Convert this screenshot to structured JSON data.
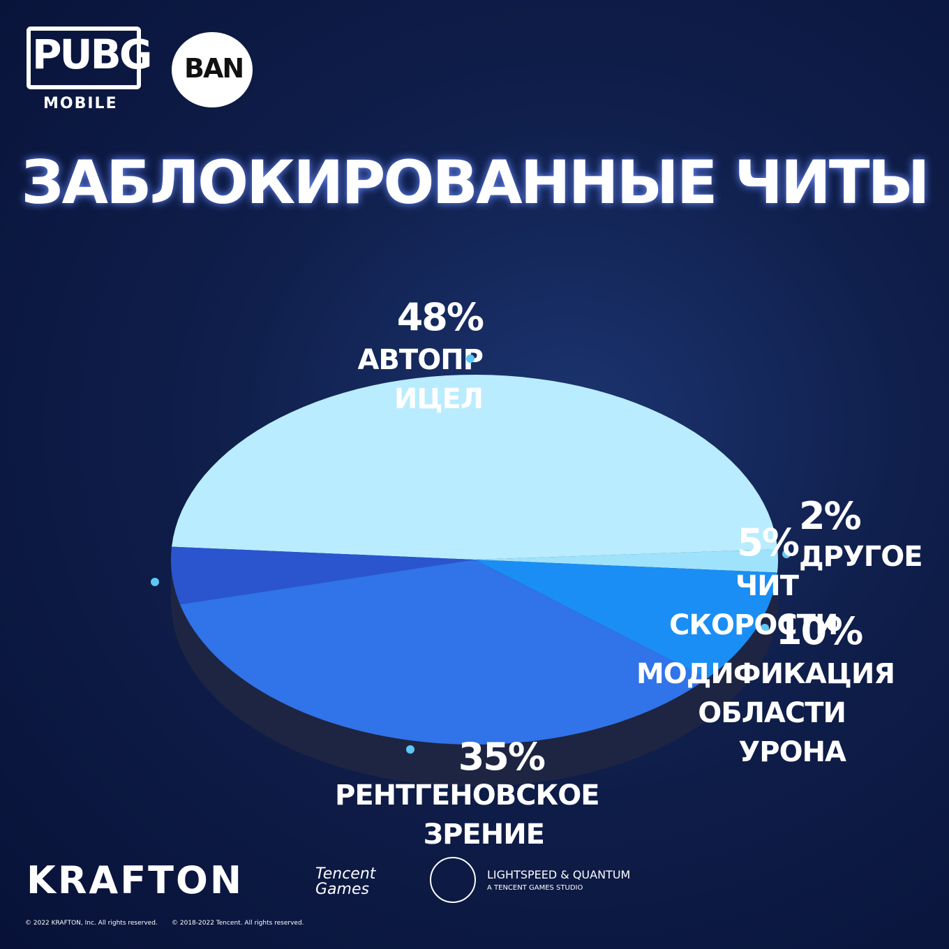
{
  "brand": {
    "pubg": "PUBG",
    "mobile": "MOBILE",
    "ban": "BAN"
  },
  "chart_data": {
    "type": "pie",
    "title": "ЗАБЛОКИРОВАННЫЕ ЧИТЫ",
    "categories": [
      "АВТОПР ИЦЕЛ",
      "ДРУГОЕ",
      "МОДИФИКАЦИЯ ОБЛАСТИ УРОНА",
      "РЕНТГЕНОВСКОЕ ЗРЕНИЕ",
      "ЧИТ СКОРОСТИ"
    ],
    "values": [
      48,
      2,
      10,
      35,
      5
    ],
    "value_labels": [
      "48%",
      "2%",
      "10%",
      "35%",
      "5%"
    ],
    "colors": [
      "#b9ecfe",
      "#9fe2fb",
      "#1a8ef5",
      "#3173e8",
      "#2a55cf"
    ]
  },
  "footer": {
    "krafton": "KRAFTON",
    "tencent": "Tencent",
    "games": "Games",
    "studio": "LIGHTSPEED & QUANTUM",
    "studio_sub": "A TENCENT GAMES STUDIO",
    "copyright1": "© 2022 KRAFTON, Inc. All rights reserved.",
    "copyright2": "© 2018-2022 Tencent. All rights reserved."
  }
}
